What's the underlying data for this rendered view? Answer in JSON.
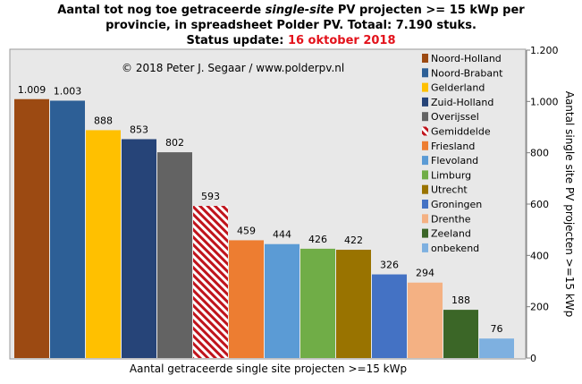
{
  "header": {
    "line1_a": "Aantal tot nog toe getraceerde ",
    "line1_em": "single-site",
    "line1_b": " PV projecten >= 15 kWp per",
    "line2": "provincie, in spreadsheet Polder PV. Totaal: 7.190 stuks.",
    "line3_prefix": "Status update: ",
    "line3_date": "16 oktober 2018"
  },
  "copyright": "© 2018 Peter J. Segaar / www.polderpv.nl",
  "colors": {
    "date": "#e3121b",
    "average_label": "#c0141c",
    "plot_background": "#e8e8e8"
  },
  "chart_data": {
    "type": "bar",
    "xlabel": "Aantal getraceerde single site projecten >=15 kWp",
    "ylabel": "Aantal single site PV projecten >=15 kWp",
    "ylim": [
      0,
      1200
    ],
    "yticks": [
      0,
      200,
      400,
      600,
      800,
      1000,
      1200
    ],
    "ytick_labels": [
      "0",
      "200",
      "400",
      "600",
      "800",
      "1.000",
      "1.200"
    ],
    "y_axis_side": "right",
    "grid": false,
    "legend_position": "right",
    "categories": [
      "Noord-Holland",
      "Noord-Brabant",
      "Gelderland",
      "Zuid-Holland",
      "Overijssel",
      "Gemiddelde",
      "Friesland",
      "Flevoland",
      "Limburg",
      "Utrecht",
      "Groningen",
      "Drenthe",
      "Zeeland",
      "onbekend"
    ],
    "values": [
      1009,
      1003,
      888,
      853,
      802,
      593,
      459,
      444,
      426,
      422,
      326,
      294,
      188,
      76
    ],
    "value_labels": [
      "1.009",
      "1.003",
      "888",
      "853",
      "802",
      "593",
      "459",
      "444",
      "426",
      "422",
      "326",
      "294",
      "188",
      "76"
    ],
    "bar_colors": [
      "#9c4a12",
      "#2d5f96",
      "#ffc000",
      "#264478",
      "#636363",
      "hatched-red",
      "#ed7d31",
      "#5b9bd5",
      "#70ad47",
      "#997300",
      "#4472c4",
      "#f4b183",
      "#3b6627",
      "#7eb0e0"
    ],
    "highlighted_category": "Gemiddelde"
  }
}
